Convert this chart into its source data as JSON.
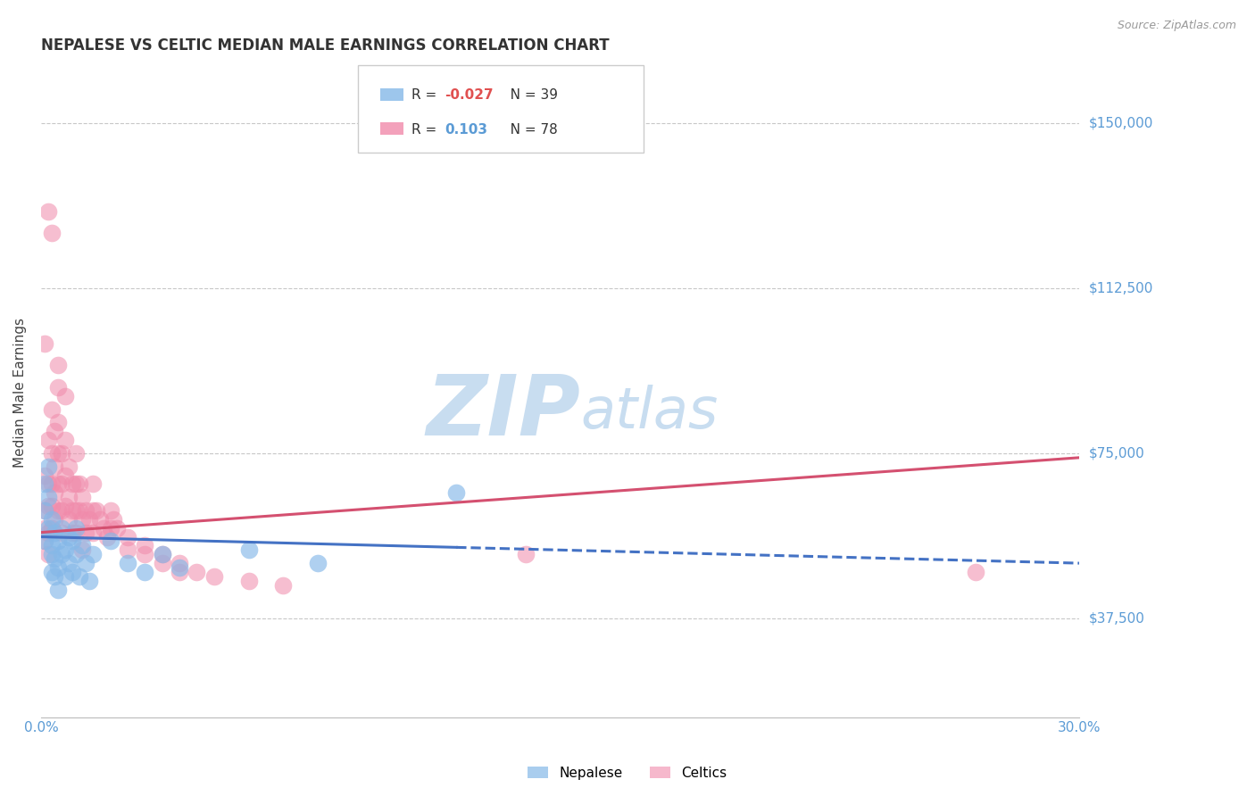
{
  "title": "NEPALESE VS CELTIC MEDIAN MALE EARNINGS CORRELATION CHART",
  "source": "Source: ZipAtlas.com",
  "ylabel": "Median Male Earnings",
  "ytick_labels": [
    "$37,500",
    "$75,000",
    "$112,500",
    "$150,000"
  ],
  "ytick_values": [
    37500,
    75000,
    112500,
    150000
  ],
  "xlim": [
    0.0,
    0.3
  ],
  "ylim": [
    15000,
    162500
  ],
  "xtick_labels": [
    "0.0%",
    "",
    "",
    "",
    "",
    "",
    "30.0%"
  ],
  "xtick_values": [
    0.0,
    0.05,
    0.1,
    0.15,
    0.2,
    0.25,
    0.3
  ],
  "background_color": "#ffffff",
  "grid_color": "#c8c8c8",
  "nepalese_color": "#85b8e8",
  "celtics_color": "#f08aaa",
  "nepalese_R": -0.027,
  "nepalese_N": 39,
  "celtics_R": 0.103,
  "celtics_N": 78,
  "nepalese_trendline_color": "#4472c4",
  "celtics_trendline_color": "#d45070",
  "watermark_zip_color": "#c8ddf0",
  "watermark_atlas_color": "#c8ddf0",
  "title_fontsize": 12,
  "axis_label_color": "#444444",
  "tick_label_color_x": "#5b9bd5",
  "tick_label_color_y": "#5b9bd5",
  "nepalese_scatter_x": [
    0.001,
    0.001,
    0.001,
    0.002,
    0.002,
    0.002,
    0.003,
    0.003,
    0.003,
    0.003,
    0.004,
    0.004,
    0.004,
    0.005,
    0.005,
    0.005,
    0.006,
    0.006,
    0.007,
    0.007,
    0.008,
    0.008,
    0.009,
    0.009,
    0.01,
    0.01,
    0.011,
    0.012,
    0.013,
    0.014,
    0.015,
    0.02,
    0.025,
    0.03,
    0.035,
    0.04,
    0.12,
    0.08,
    0.06
  ],
  "nepalese_scatter_y": [
    68000,
    62000,
    55000,
    72000,
    65000,
    58000,
    60000,
    54000,
    48000,
    52000,
    57000,
    51000,
    47000,
    55000,
    49000,
    44000,
    58000,
    52000,
    53000,
    47000,
    56000,
    50000,
    55000,
    48000,
    58000,
    52000,
    47000,
    54000,
    50000,
    46000,
    52000,
    55000,
    50000,
    48000,
    52000,
    49000,
    66000,
    50000,
    53000
  ],
  "celtics_scatter_x": [
    0.001,
    0.001,
    0.001,
    0.001,
    0.002,
    0.002,
    0.002,
    0.002,
    0.002,
    0.003,
    0.003,
    0.003,
    0.003,
    0.003,
    0.004,
    0.004,
    0.004,
    0.004,
    0.005,
    0.005,
    0.005,
    0.005,
    0.005,
    0.006,
    0.006,
    0.006,
    0.006,
    0.007,
    0.007,
    0.007,
    0.008,
    0.008,
    0.008,
    0.009,
    0.009,
    0.009,
    0.01,
    0.01,
    0.01,
    0.01,
    0.011,
    0.011,
    0.012,
    0.012,
    0.013,
    0.013,
    0.014,
    0.015,
    0.015,
    0.015,
    0.016,
    0.017,
    0.018,
    0.019,
    0.02,
    0.02,
    0.021,
    0.022,
    0.025,
    0.025,
    0.03,
    0.03,
    0.035,
    0.035,
    0.04,
    0.04,
    0.045,
    0.05,
    0.06,
    0.07,
    0.003,
    0.005,
    0.007,
    0.002,
    0.001,
    0.012,
    0.27,
    0.14
  ],
  "celtics_scatter_y": [
    70000,
    62000,
    58000,
    55000,
    78000,
    68000,
    63000,
    57000,
    52000,
    85000,
    75000,
    68000,
    63000,
    58000,
    80000,
    72000,
    66000,
    60000,
    90000,
    82000,
    75000,
    68000,
    62000,
    75000,
    68000,
    62000,
    57000,
    78000,
    70000,
    63000,
    72000,
    65000,
    60000,
    68000,
    62000,
    57000,
    75000,
    68000,
    62000,
    57000,
    68000,
    62000,
    65000,
    60000,
    62000,
    57000,
    60000,
    68000,
    62000,
    57000,
    62000,
    60000,
    58000,
    56000,
    62000,
    58000,
    60000,
    58000,
    56000,
    53000,
    54000,
    52000,
    52000,
    50000,
    50000,
    48000,
    48000,
    47000,
    46000,
    45000,
    125000,
    95000,
    88000,
    130000,
    100000,
    53000,
    48000,
    52000
  ],
  "nepalese_trend_x0": 0.0,
  "nepalese_trend_x1": 0.3,
  "nepalese_trend_y0": 56000,
  "nepalese_trend_y1": 50000,
  "celtics_trend_x0": 0.0,
  "celtics_trend_x1": 0.3,
  "celtics_trend_y0": 57000,
  "celtics_trend_y1": 74000
}
